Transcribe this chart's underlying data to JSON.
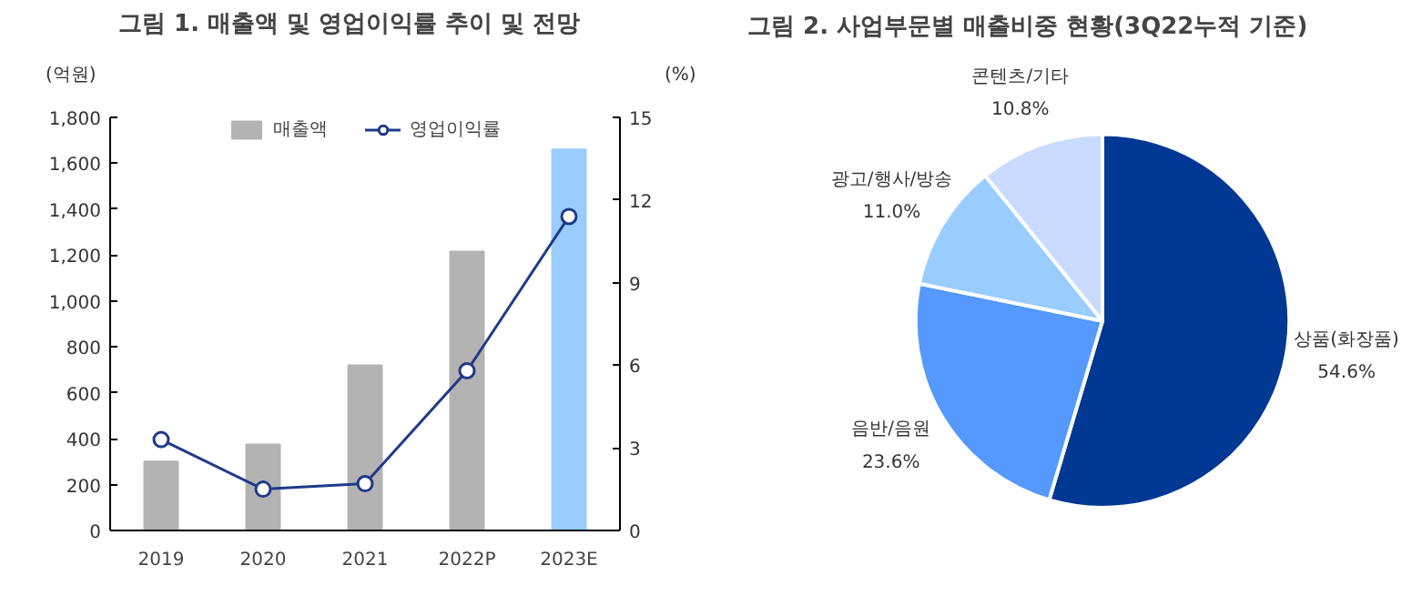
{
  "chart_data": [
    {
      "type": "bar",
      "title": "그림 1. 매출액 및 영업이익률 추이 및 전망",
      "ylabel": "(억원)",
      "y2label": "(%)",
      "categories": [
        "2019",
        "2020",
        "2021",
        "2022P",
        "2023E"
      ],
      "series": [
        {
          "name": "매출액",
          "type": "bar",
          "colors": [
            "#b3b3b3",
            "#b3b3b3",
            "#b3b3b3",
            "#b3b3b3",
            "#99ccff"
          ],
          "values": [
            300,
            375,
            720,
            1215,
            1660
          ]
        },
        {
          "name": "영업이익률",
          "type": "line",
          "axis": "y2",
          "color": "#1f3a8a",
          "values": [
            3.3,
            1.5,
            1.7,
            5.8,
            11.4
          ]
        }
      ],
      "ylim": [
        0,
        1800
      ],
      "yticks": [
        {
          "value": 0,
          "label": "0"
        },
        {
          "value": 200,
          "label": "200"
        },
        {
          "value": 400,
          "label": "400"
        },
        {
          "value": 600,
          "label": "600"
        },
        {
          "value": 800,
          "label": "800"
        },
        {
          "value": 1000,
          "label": "1,000"
        },
        {
          "value": 1200,
          "label": "1,200"
        },
        {
          "value": 1400,
          "label": "1,400"
        },
        {
          "value": 1600,
          "label": "1,600"
        },
        {
          "value": 1800,
          "label": "1,800"
        }
      ],
      "y2lim": [
        0,
        15
      ],
      "y2ticks": [
        0,
        3,
        6,
        9,
        12,
        15
      ],
      "marker": "circle",
      "legend": "top",
      "grid": false
    },
    {
      "type": "pie",
      "title": "그림 2. 사업부문별 매출비중 현황(3Q22누적 기준)",
      "categories": [
        "상품(화장품)",
        "음반/음원",
        "광고/행사/방송",
        "콘텐츠/기타"
      ],
      "values": [
        54.6,
        23.6,
        11.0,
        10.8
      ],
      "colors": [
        "#003893",
        "#5599ff",
        "#99ccff",
        "#c9dbff"
      ],
      "value_labels": [
        "54.6%",
        "23.6%",
        "11.0%",
        "10.8%"
      ]
    }
  ]
}
